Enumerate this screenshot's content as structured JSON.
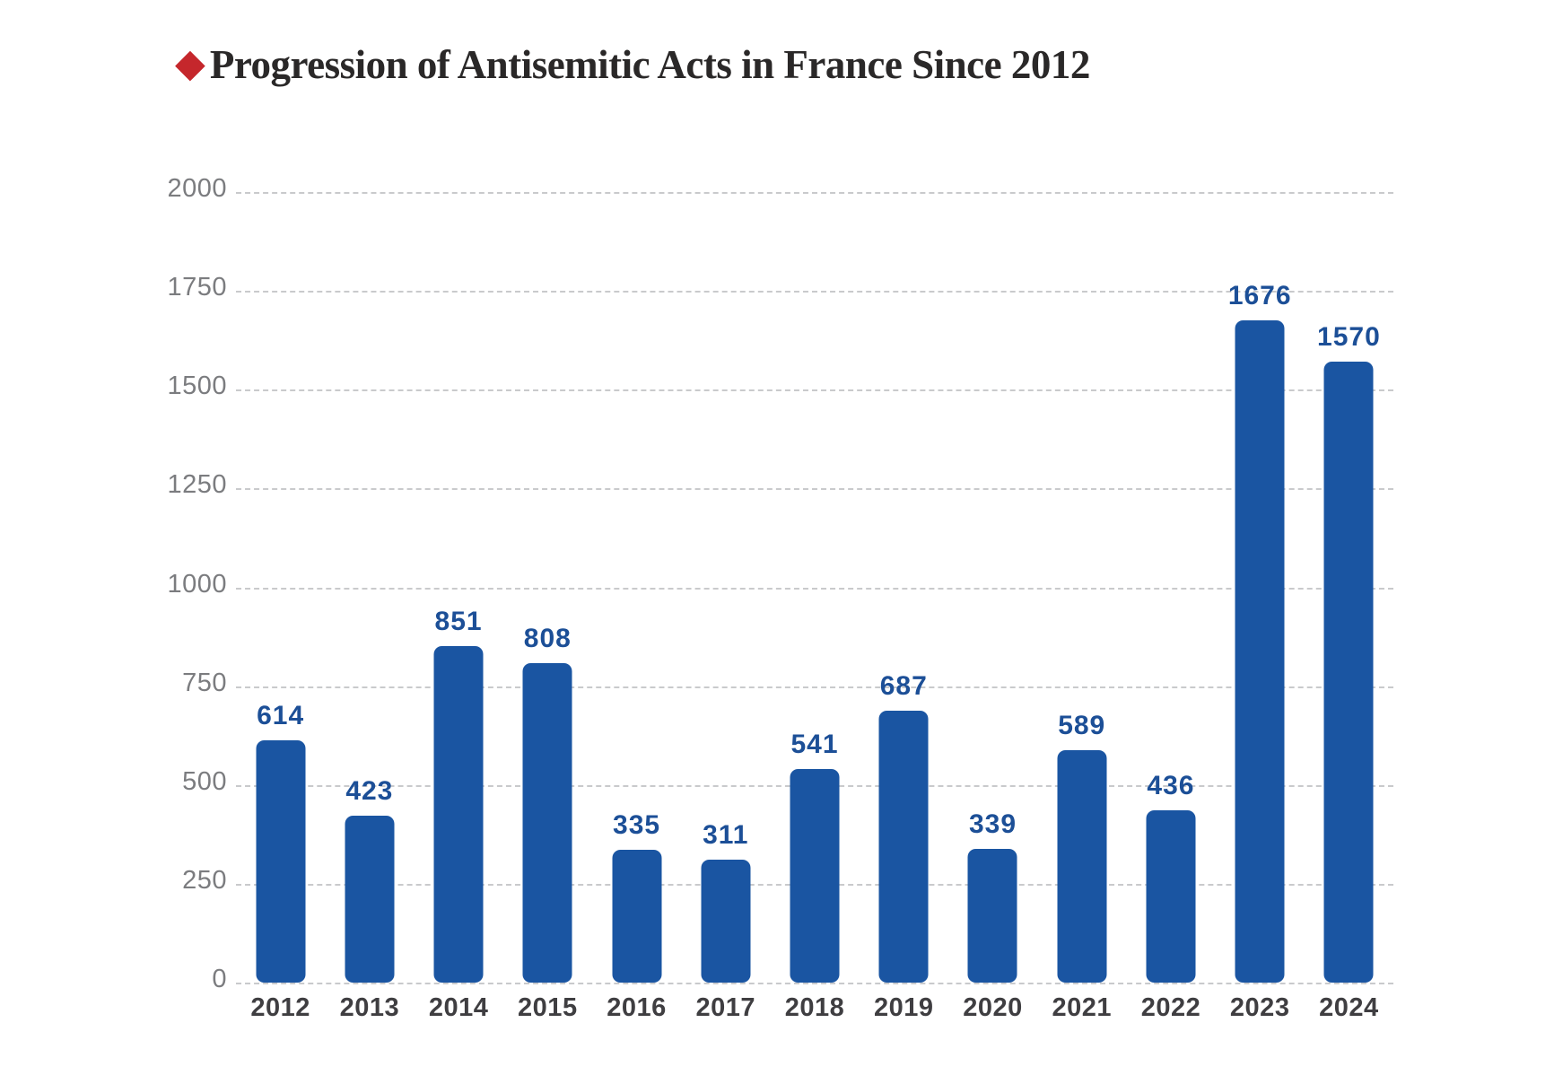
{
  "title": {
    "bullet": "◆",
    "text": "Progression of Antisemitic Acts in France Since 2012"
  },
  "colors": {
    "bar": "#1A55A2",
    "value_label": "#1C4F97",
    "title_text": "#2a2828",
    "bullet_red": "#C5272C",
    "gridline": "#c9cacc",
    "ytick_text": "#7b7c7f",
    "xtick_text": "#3f3e41",
    "background": "#ffffff"
  },
  "chart_data": {
    "type": "bar",
    "title": "Progression of Antisemitic Acts in France Since 2012",
    "categories": [
      "2012",
      "2013",
      "2014",
      "2015",
      "2016",
      "2017",
      "2018",
      "2019",
      "2020",
      "2021",
      "2022",
      "2023",
      "2024"
    ],
    "values": [
      614,
      423,
      851,
      808,
      335,
      311,
      541,
      687,
      339,
      589,
      436,
      1676,
      1570
    ],
    "value_labels": [
      "614",
      "423",
      "851",
      "808",
      "335",
      "311",
      "541",
      "687",
      "339",
      "589",
      "436",
      "1676",
      "1570"
    ],
    "xlabel": "",
    "ylabel": "",
    "ylim": [
      0,
      2000
    ],
    "yticks": [
      0,
      250,
      500,
      750,
      1000,
      1250,
      1500,
      1750,
      2000
    ],
    "grid": "horizontal-dashed",
    "legend": "none",
    "bar_color": "#1A55A2"
  }
}
